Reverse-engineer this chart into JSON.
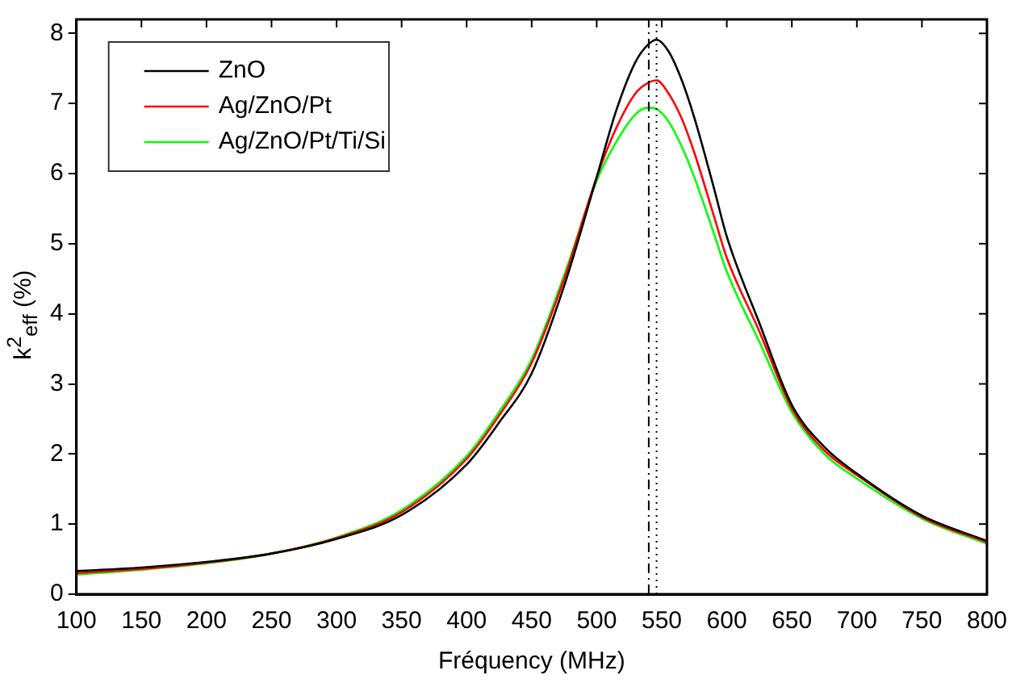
{
  "chart_data": {
    "type": "line",
    "xlabel": "Fréquency (MHz)",
    "ylabel": "k$^{2}$$_{eff}$ (%)",
    "x": [
      100,
      150,
      200,
      250,
      300,
      350,
      400,
      425,
      450,
      475,
      500,
      515,
      530,
      540,
      546,
      555,
      565,
      575,
      590,
      600,
      625,
      650,
      675,
      700,
      750,
      800
    ],
    "series": [
      {
        "name": "ZnO",
        "color": "#000000",
        "values": [
          0.33,
          0.38,
          0.46,
          0.58,
          0.79,
          1.13,
          1.85,
          2.45,
          3.15,
          4.4,
          5.95,
          6.9,
          7.6,
          7.85,
          7.91,
          7.75,
          7.35,
          6.8,
          5.8,
          5.1,
          3.87,
          2.7,
          2.1,
          1.72,
          1.12,
          0.76
        ]
      },
      {
        "name": "Ag/ZnO/Pt",
        "color": "#ff0000",
        "values": [
          0.3,
          0.36,
          0.45,
          0.58,
          0.8,
          1.17,
          1.93,
          2.55,
          3.3,
          4.5,
          5.95,
          6.65,
          7.15,
          7.3,
          7.33,
          7.15,
          6.8,
          6.3,
          5.4,
          4.8,
          3.75,
          2.65,
          2.05,
          1.7,
          1.1,
          0.74
        ]
      },
      {
        "name": "Ag/ZnO/Pt/Ti/Si",
        "color": "#00ff00",
        "values": [
          0.28,
          0.35,
          0.44,
          0.58,
          0.81,
          1.2,
          1.97,
          2.6,
          3.35,
          4.55,
          5.9,
          6.45,
          6.85,
          6.94,
          6.92,
          6.75,
          6.4,
          5.95,
          5.15,
          4.6,
          3.6,
          2.6,
          2.0,
          1.65,
          1.08,
          0.72
        ]
      }
    ],
    "ref_lines": [
      {
        "axis": "x",
        "value": 540,
        "line_style": "dashed",
        "color": "#000000"
      },
      {
        "axis": "x",
        "value": 546,
        "line_style": "dotted",
        "color": "#000000"
      }
    ],
    "xlim": [
      100,
      800
    ],
    "xticks": [
      100,
      150,
      200,
      250,
      300,
      350,
      400,
      450,
      500,
      550,
      600,
      650,
      700,
      750,
      800
    ],
    "ylim": [
      0,
      8.2
    ],
    "yticks": [
      0,
      1,
      2,
      3,
      4,
      5,
      6,
      7,
      8
    ],
    "grid": false,
    "legend": "top left",
    "marker": "none",
    "line_style": "solid"
  }
}
